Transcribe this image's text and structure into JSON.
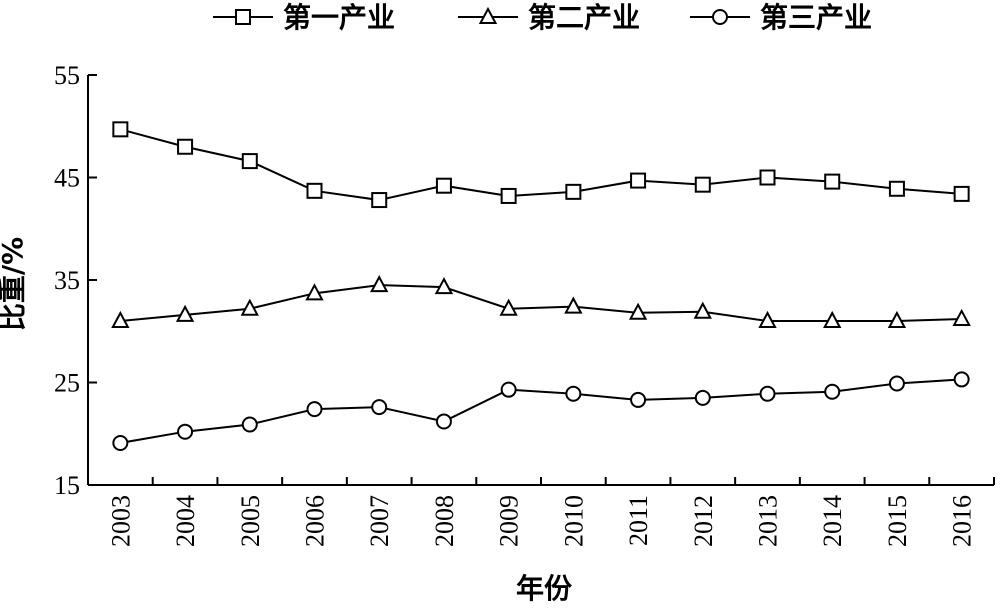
{
  "chart_data": {
    "type": "line",
    "xlabel": "年份",
    "ylabel": "比重/%",
    "categories": [
      "2003",
      "2004",
      "2005",
      "2006",
      "2007",
      "2008",
      "2009",
      "2010",
      "2011",
      "2012",
      "2013",
      "2014",
      "2015",
      "2016"
    ],
    "ylim": [
      15,
      55
    ],
    "yticks": [
      15,
      25,
      35,
      45,
      55
    ],
    "grid": false,
    "legend_position": "top",
    "series": [
      {
        "name": "第一产业",
        "marker": "square",
        "values": [
          49.7,
          48.0,
          46.6,
          43.7,
          42.8,
          44.2,
          43.2,
          43.6,
          44.7,
          44.3,
          45.0,
          44.6,
          43.9,
          43.4
        ]
      },
      {
        "name": "第二产业",
        "marker": "triangle",
        "values": [
          31.0,
          31.6,
          32.2,
          33.7,
          34.5,
          34.3,
          32.2,
          32.4,
          31.8,
          31.9,
          31.0,
          31.0,
          31.0,
          31.2
        ]
      },
      {
        "name": "第三产业",
        "marker": "circle",
        "values": [
          19.1,
          20.2,
          20.9,
          22.4,
          22.6,
          21.2,
          24.3,
          23.9,
          23.3,
          23.5,
          23.9,
          24.1,
          24.9,
          25.3
        ]
      }
    ]
  }
}
